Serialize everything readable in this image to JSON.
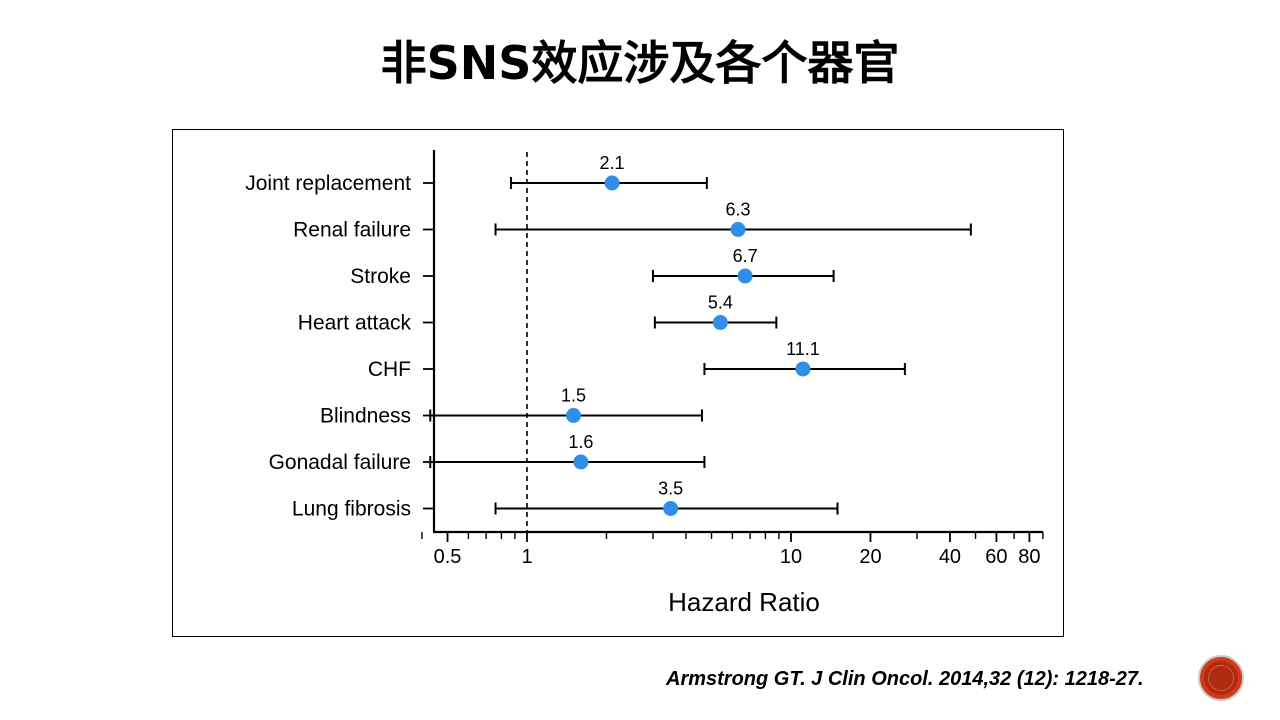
{
  "slide": {
    "title": "非SNS效应涉及各个器官",
    "citation": "Armstrong GT. J Clin Oncol. 2014,32 (12): 1218-27."
  },
  "colors": {
    "point": "#2f8fe8",
    "line": "#000000",
    "badge": "#b02a10"
  },
  "icons": {
    "badge": "logo-badge-icon"
  },
  "chart_data": {
    "type": "scatter",
    "subtype": "forest-plot",
    "title": "",
    "xlabel": "Hazard Ratio",
    "ylabel": "",
    "xscale": "log",
    "xlim": [
      0.4,
      90
    ],
    "reference_line": 1,
    "xticks_labeled": [
      0.5,
      1,
      10,
      20,
      40,
      60,
      80
    ],
    "xtick_labels": [
      "0.5",
      "1",
      "10",
      "20",
      "40",
      "60",
      "80"
    ],
    "xticks_minor": [
      0.4,
      0.6,
      0.7,
      0.8,
      0.9,
      2,
      3,
      4,
      5,
      6,
      7,
      8,
      9,
      30,
      50,
      70,
      90
    ],
    "categories": [
      "Joint replacement",
      "Renal failure",
      "Stroke",
      "Heart attack",
      "CHF",
      "Blindness",
      "Gonadal failure",
      "Lung fibrosis"
    ],
    "estimates": [
      2.1,
      6.3,
      6.7,
      5.4,
      11.1,
      1.5,
      1.6,
      3.5
    ],
    "value_labels": [
      "2.1",
      "6.3",
      "6.7",
      "5.4",
      "11.1",
      "1.5",
      "1.6",
      "3.5"
    ],
    "ci_lower": [
      0.87,
      0.76,
      3.0,
      3.05,
      4.7,
      0.43,
      0.43,
      0.76
    ],
    "ci_upper": [
      4.8,
      48,
      14.5,
      8.8,
      27,
      4.6,
      4.7,
      15
    ],
    "grid": false,
    "legend": "none"
  }
}
